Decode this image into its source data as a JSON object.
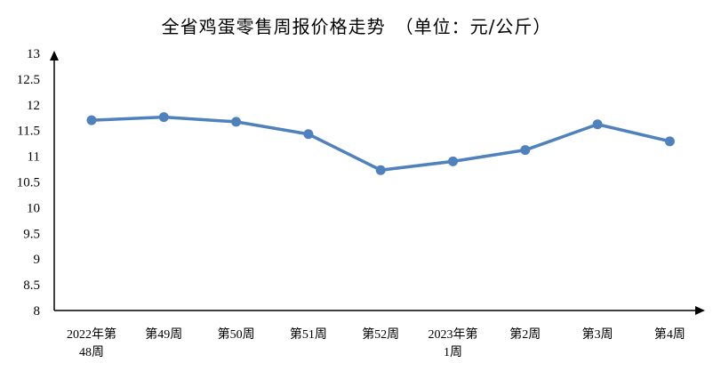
{
  "chart_data": {
    "type": "line",
    "title": "全省鸡蛋零售周报价格走势　（单位：元/公斤）",
    "xlabel": "",
    "ylabel": "",
    "categories": [
      [
        "2022年第",
        "48周"
      ],
      [
        "第49周"
      ],
      [
        "第50周"
      ],
      [
        "第51周"
      ],
      [
        "第52周"
      ],
      [
        "2023年第",
        "1周"
      ],
      [
        "第2周"
      ],
      [
        "第3周"
      ],
      [
        "第4周"
      ]
    ],
    "series": [
      {
        "values": [
          11.7,
          11.76,
          11.67,
          11.43,
          10.73,
          10.9,
          11.12,
          11.62,
          11.29
        ]
      }
    ],
    "ylim": [
      8,
      13
    ],
    "yticks": [
      "8",
      "8.5",
      "9",
      "9.5",
      "10",
      "10.5",
      "11",
      "11.5",
      "12",
      "12.5",
      "13"
    ],
    "grid": false,
    "legend": "none",
    "line_color": "#4F81BD",
    "axis_color": "#000000"
  }
}
